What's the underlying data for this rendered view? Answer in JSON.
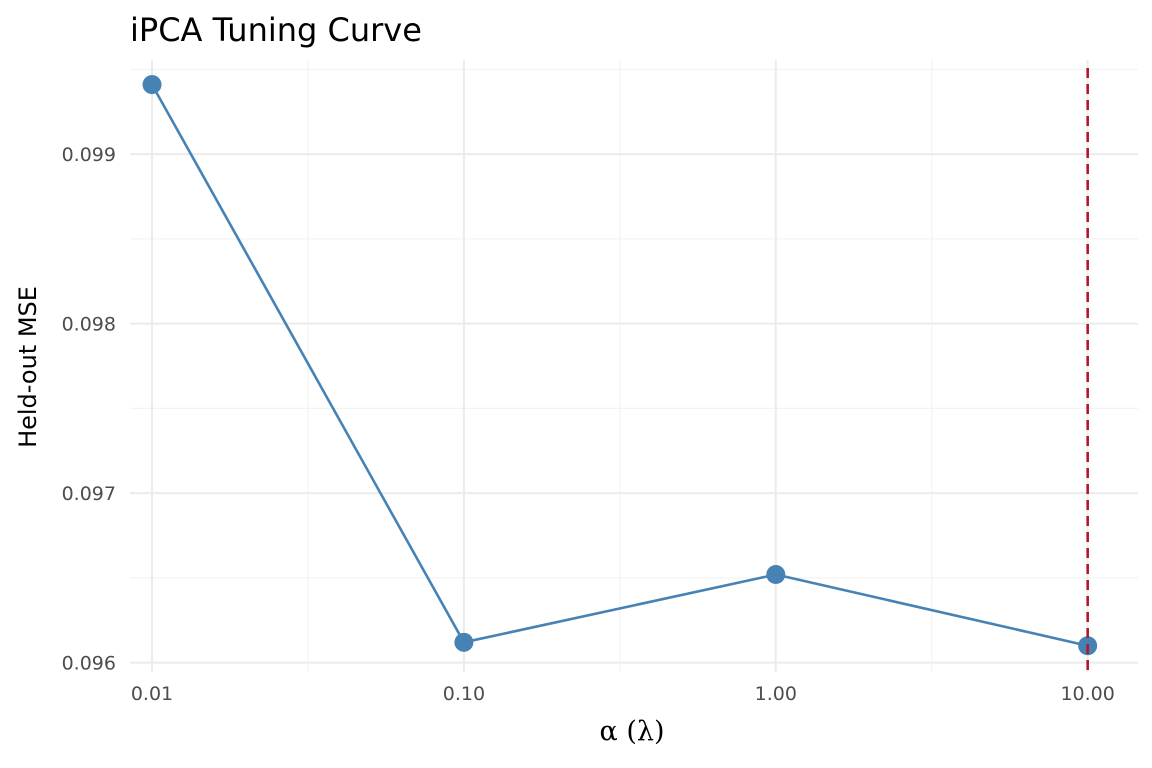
{
  "chart_data": {
    "type": "line",
    "title": "iPCA Tuning Curve",
    "xlabel": "α (λ)",
    "ylabel": "Held-out MSE",
    "x_scale": "log10",
    "x": [
      0.01,
      0.1,
      1.0,
      10.0
    ],
    "x_tick_labels": [
      "0.01",
      "0.10",
      "1.00",
      "10.00"
    ],
    "y": [
      0.09941,
      0.09612,
      0.09652,
      0.0961
    ],
    "y_ticks": [
      0.096,
      0.097,
      0.098,
      0.099
    ],
    "y_tick_labels": [
      "0.096",
      "0.097",
      "0.098",
      "0.099"
    ],
    "xlim": [
      0.0085,
      14.5
    ],
    "ylim": [
      0.095945,
      0.099555
    ],
    "grid": true,
    "vline": {
      "x": 10.0,
      "color": "#b2182b",
      "style": "dashed"
    },
    "series_color": "#4682b4"
  }
}
